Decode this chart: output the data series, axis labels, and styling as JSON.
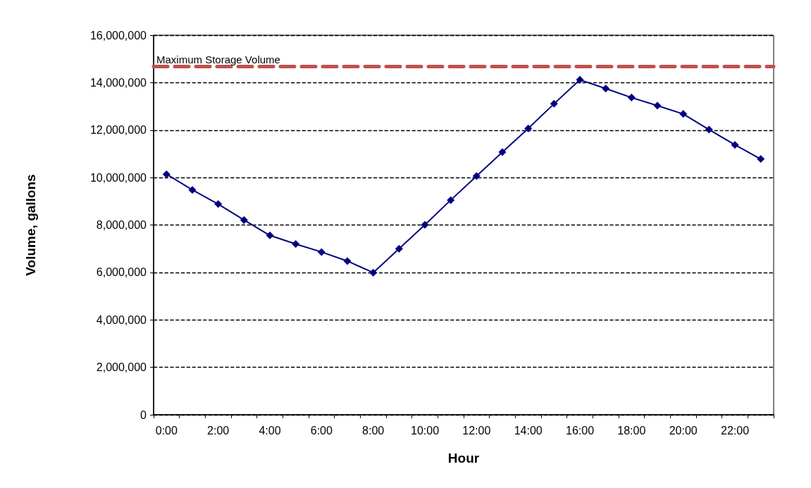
{
  "chart_data": {
    "type": "line",
    "xlabel": "Hour",
    "ylabel": "Volume, gallons",
    "categories": [
      "0:00",
      null,
      "2:00",
      null,
      "4:00",
      null,
      "6:00",
      null,
      "8:00",
      null,
      "10:00",
      null,
      "12:00",
      null,
      "14:00",
      null,
      "16:00",
      null,
      "18:00",
      null,
      "20:00",
      null,
      "22:00",
      null
    ],
    "series": [
      {
        "color": "#000080",
        "values": [
          10140000,
          9480000,
          8880000,
          8210000,
          7560000,
          7200000,
          6860000,
          6480000,
          5990000,
          7000000,
          8010000,
          9050000,
          10060000,
          11070000,
          12070000,
          13110000,
          14120000,
          13750000,
          13370000,
          13030000,
          12680000,
          12020000,
          11380000,
          10780000
        ]
      }
    ],
    "ylim": [
      0,
      16000000
    ],
    "yticks": [
      {
        "value": 0,
        "label": "0"
      },
      {
        "value": 2000000,
        "label": "2,000,000"
      },
      {
        "value": 4000000,
        "label": "4,000,000"
      },
      {
        "value": 6000000,
        "label": "6,000,000"
      },
      {
        "value": 8000000,
        "label": "8,000,000"
      },
      {
        "value": 10000000,
        "label": "10,000,000"
      },
      {
        "value": 12000000,
        "label": "12,000,000"
      },
      {
        "value": 14000000,
        "label": "14,000,000"
      },
      {
        "value": 16000000,
        "label": "16,000,000"
      }
    ],
    "ref_lines": [
      {
        "axis": "y",
        "value": 14700000,
        "label": "Maximum Storage Volume",
        "color": "#c0504d",
        "line_style": "dashed"
      }
    ],
    "grid": "y",
    "marker": "diamond",
    "line_style": "solid"
  }
}
